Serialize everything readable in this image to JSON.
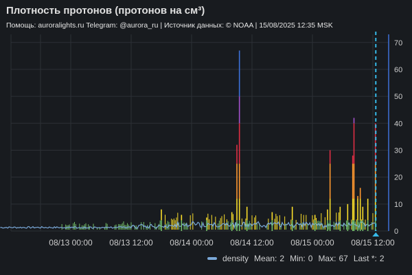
{
  "header": {
    "title": "Плотность протонов (протонов на см³)",
    "subtitle": "Помощь: auroralights.ru Telegram: @aurora_ru | Источник данных:  © NOAA | 15/08/2025 12:35 MSK"
  },
  "colors": {
    "background": "#181b1f",
    "grid": "#2c3036",
    "axis_text": "#cccccc",
    "baseline": "#7aa8d8",
    "low": "#73bf69",
    "mid": "#fade2a",
    "high": "#ff9830",
    "higher": "#e02f44",
    "very_high": "#a352cc",
    "extreme": "#3d71d9",
    "now_marker": "#36b9e8"
  },
  "legend": {
    "series_name": "density",
    "mean_label": "Mean:",
    "mean_value": "2",
    "min_label": "Min:",
    "min_value": "0",
    "max_label": "Max:",
    "max_value": "67",
    "last_label": "Last *:",
    "last_value": "2"
  },
  "chart_data": {
    "type": "line",
    "title": "Плотность протонов (протонов на см³)",
    "x_tick_labels": [
      "08/13 00:00",
      "08/13 12:00",
      "08/14 00:00",
      "08/14 12:00",
      "08/15 00:00",
      "08/15 12:00"
    ],
    "y_ticks": [
      0,
      10,
      20,
      30,
      40,
      50,
      60,
      70
    ],
    "ylim": [
      0,
      73
    ],
    "y_axis_side": "right",
    "grid": true,
    "legend_placement": "bottom-right",
    "now_marker_time": "08/15 12:35",
    "spikes": [
      {
        "time": "08/13 18:00",
        "value": 8
      },
      {
        "time": "08/13 22:00",
        "value": 6
      },
      {
        "time": "08/14 03:00",
        "value": 5
      },
      {
        "time": "08/14 08:00",
        "value": 7
      },
      {
        "time": "08/14 09:00",
        "value": 32
      },
      {
        "time": "08/14 09:30",
        "value": 67
      },
      {
        "time": "08/14 11:00",
        "value": 9
      },
      {
        "time": "08/14 16:00",
        "value": 7
      },
      {
        "time": "08/14 20:00",
        "value": 9
      },
      {
        "time": "08/15 00:30",
        "value": 6
      },
      {
        "time": "08/15 03:00",
        "value": 8
      },
      {
        "time": "08/15 03:30",
        "value": 30
      },
      {
        "time": "08/15 05:30",
        "value": 9
      },
      {
        "time": "08/15 07:00",
        "value": 10
      },
      {
        "time": "08/15 08:00",
        "value": 28
      },
      {
        "time": "08/15 08:15",
        "value": 42
      },
      {
        "time": "08/15 09:00",
        "value": 13
      },
      {
        "time": "08/15 09:30",
        "value": 16
      },
      {
        "time": "08/15 10:00",
        "value": 9
      },
      {
        "time": "08/15 11:00",
        "value": 12
      },
      {
        "time": "08/15 12:30",
        "value": 40
      }
    ],
    "series": [
      {
        "name": "density",
        "mean": 2,
        "min": 0,
        "max": 67,
        "last": 2
      }
    ]
  }
}
